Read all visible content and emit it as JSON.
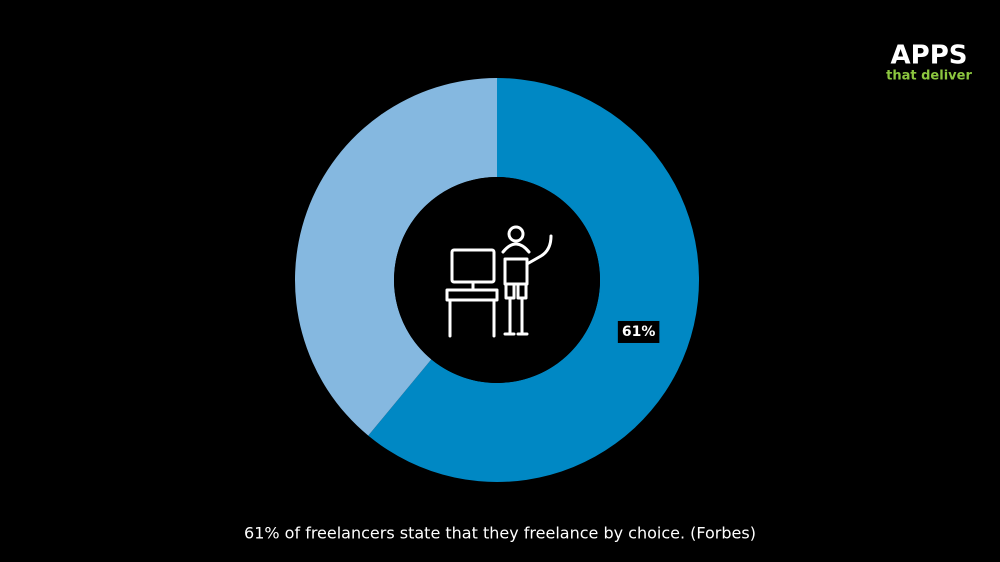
{
  "chart_data": {
    "type": "pie",
    "donut": true,
    "values": [
      61,
      39
    ],
    "value_labels": [
      "61%",
      null
    ],
    "colors": [
      "#0088c4",
      "#85b8e0"
    ],
    "caption": "61% of freelancers state that they freelance by choice. (Forbes)"
  },
  "logo": {
    "title": "APPS",
    "subtitle": "that deliver"
  }
}
